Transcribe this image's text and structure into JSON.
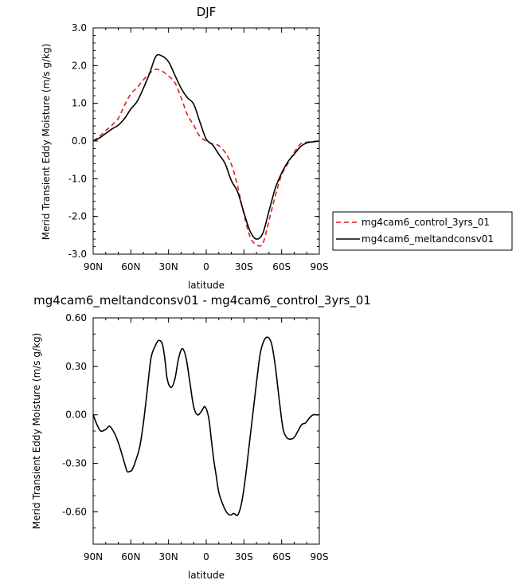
{
  "chart_data": [
    {
      "type": "line",
      "title": "DJF",
      "xlabel": "latitude",
      "ylabel": "Merid Transient Eddy Moisture (m/s g/kg)",
      "x_tick_labels": [
        "90N",
        "60N",
        "30N",
        "0",
        "30S",
        "60S",
        "90S"
      ],
      "y_tick_labels": [
        "3.0",
        "2.0",
        "1.0",
        "0.0",
        "-1.0",
        "-2.0",
        "-3.0"
      ],
      "xlim": [
        -90,
        90
      ],
      "ylim": [
        -3.0,
        3.0
      ],
      "legend": "right",
      "series": [
        {
          "name": "mg4cam6_control_3yrs_01",
          "color": "#e01e1e",
          "dash": "dashed",
          "x": [
            -90,
            -85,
            -80,
            -75,
            -70,
            -65,
            -60,
            -55,
            -50,
            -45,
            -40,
            -35,
            -30,
            -25,
            -20,
            -15,
            -10,
            -5,
            0,
            5,
            10,
            15,
            20,
            25,
            30,
            35,
            40,
            45,
            50,
            55,
            60,
            65,
            70,
            75,
            80,
            85,
            90
          ],
          "y": [
            0.0,
            0.12,
            0.28,
            0.42,
            0.6,
            0.95,
            1.25,
            1.42,
            1.62,
            1.8,
            1.9,
            1.85,
            1.72,
            1.55,
            1.15,
            0.7,
            0.42,
            0.12,
            0.0,
            -0.08,
            -0.12,
            -0.3,
            -0.62,
            -1.2,
            -1.95,
            -2.55,
            -2.75,
            -2.72,
            -2.1,
            -1.45,
            -0.9,
            -0.6,
            -0.3,
            -0.08,
            -0.03,
            -0.02,
            0.0
          ]
        },
        {
          "name": "mg4cam6_meltandconsv01",
          "color": "#000000",
          "dash": "solid",
          "x": [
            -90,
            -85,
            -80,
            -75,
            -70,
            -65,
            -60,
            -55,
            -50,
            -45,
            -40,
            -35,
            -30,
            -25,
            -20,
            -15,
            -10,
            -5,
            0,
            5,
            10,
            15,
            20,
            25,
            30,
            35,
            40,
            45,
            50,
            55,
            60,
            65,
            70,
            75,
            80,
            85,
            90
          ],
          "y": [
            0.0,
            0.08,
            0.2,
            0.32,
            0.42,
            0.6,
            0.85,
            1.05,
            1.4,
            1.8,
            2.25,
            2.25,
            2.1,
            1.75,
            1.4,
            1.15,
            0.98,
            0.5,
            0.05,
            -0.1,
            -0.35,
            -0.6,
            -1.05,
            -1.35,
            -1.9,
            -2.4,
            -2.6,
            -2.45,
            -1.85,
            -1.25,
            -0.85,
            -0.55,
            -0.35,
            -0.15,
            -0.05,
            -0.02,
            0.0
          ]
        }
      ]
    },
    {
      "type": "line",
      "title": "mg4cam6_meltandconsv01 - mg4cam6_control_3yrs_01",
      "xlabel": "latitude",
      "ylabel": "Merid Transient Eddy Moisture (m/s g/kg)",
      "x_tick_labels": [
        "90N",
        "60N",
        "30N",
        "0",
        "30S",
        "60S",
        "90S"
      ],
      "y_tick_labels": [
        "0.60",
        "0.30",
        "0.00",
        "-0.30",
        "-0.60"
      ],
      "xlim": [
        -90,
        90
      ],
      "ylim": [
        -0.8,
        0.6
      ],
      "series": [
        {
          "color": "#000000",
          "dash": "solid",
          "x": [
            -90,
            -87,
            -84,
            -80,
            -77,
            -74,
            -71,
            -68,
            -65,
            -63,
            -61,
            -59,
            -56,
            -53,
            -50,
            -47,
            -44,
            -41,
            -38,
            -35,
            -33,
            -31,
            -28,
            -25,
            -22,
            -19,
            -16,
            -13,
            -10,
            -7,
            -4,
            -1,
            2,
            4,
            6,
            8,
            10,
            13,
            16,
            19,
            22,
            25,
            28,
            31,
            34,
            37,
            40,
            43,
            46,
            49,
            52,
            55,
            58,
            61,
            64,
            67,
            70,
            73,
            76,
            79,
            82,
            85,
            88,
            90
          ],
          "y": [
            0.0,
            -0.06,
            -0.1,
            -0.09,
            -0.07,
            -0.1,
            -0.15,
            -0.22,
            -0.3,
            -0.35,
            -0.35,
            -0.34,
            -0.28,
            -0.2,
            -0.05,
            0.15,
            0.35,
            0.42,
            0.46,
            0.44,
            0.35,
            0.22,
            0.17,
            0.22,
            0.35,
            0.41,
            0.35,
            0.2,
            0.05,
            0.0,
            0.02,
            0.05,
            -0.02,
            -0.15,
            -0.28,
            -0.38,
            -0.48,
            -0.55,
            -0.6,
            -0.62,
            -0.61,
            -0.62,
            -0.55,
            -0.4,
            -0.2,
            0.0,
            0.2,
            0.38,
            0.46,
            0.48,
            0.44,
            0.3,
            0.1,
            -0.08,
            -0.14,
            -0.15,
            -0.14,
            -0.1,
            -0.06,
            -0.05,
            -0.02,
            0.0,
            0.0,
            0.0
          ]
        }
      ]
    }
  ]
}
